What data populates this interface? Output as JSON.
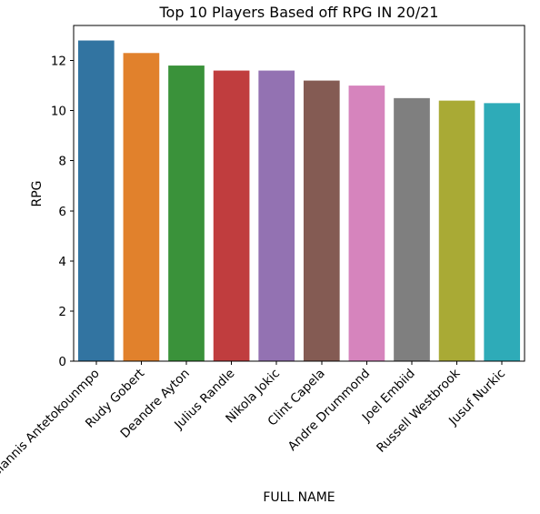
{
  "chart_data": {
    "type": "bar",
    "title": "Top 10 Players Based off RPG IN 20/21",
    "xlabel": "FULL NAME",
    "ylabel": "RPG",
    "categories": [
      "Giannis Antetokounmpo",
      "Rudy Gobert",
      "Deandre Ayton",
      "Julius Randle",
      "Nikola Jokic",
      "Clint Capela",
      "Andre Drummond",
      "Joel Embiid",
      "Russell Westbrook",
      "Jusuf Nurkic"
    ],
    "values": [
      12.8,
      12.3,
      11.8,
      11.6,
      11.6,
      11.2,
      11.0,
      10.5,
      10.4,
      10.3
    ],
    "colors": [
      "#3274a1",
      "#e1812c",
      "#3a923a",
      "#c03d3e",
      "#9372b2",
      "#845b53",
      "#d684bd",
      "#7f7f7f",
      "#a9aa35",
      "#2eabb8"
    ],
    "ylim": [
      0,
      13.4
    ],
    "yticks": [
      0,
      2,
      4,
      6,
      8,
      10,
      12
    ],
    "grid": false,
    "legend": "none"
  }
}
